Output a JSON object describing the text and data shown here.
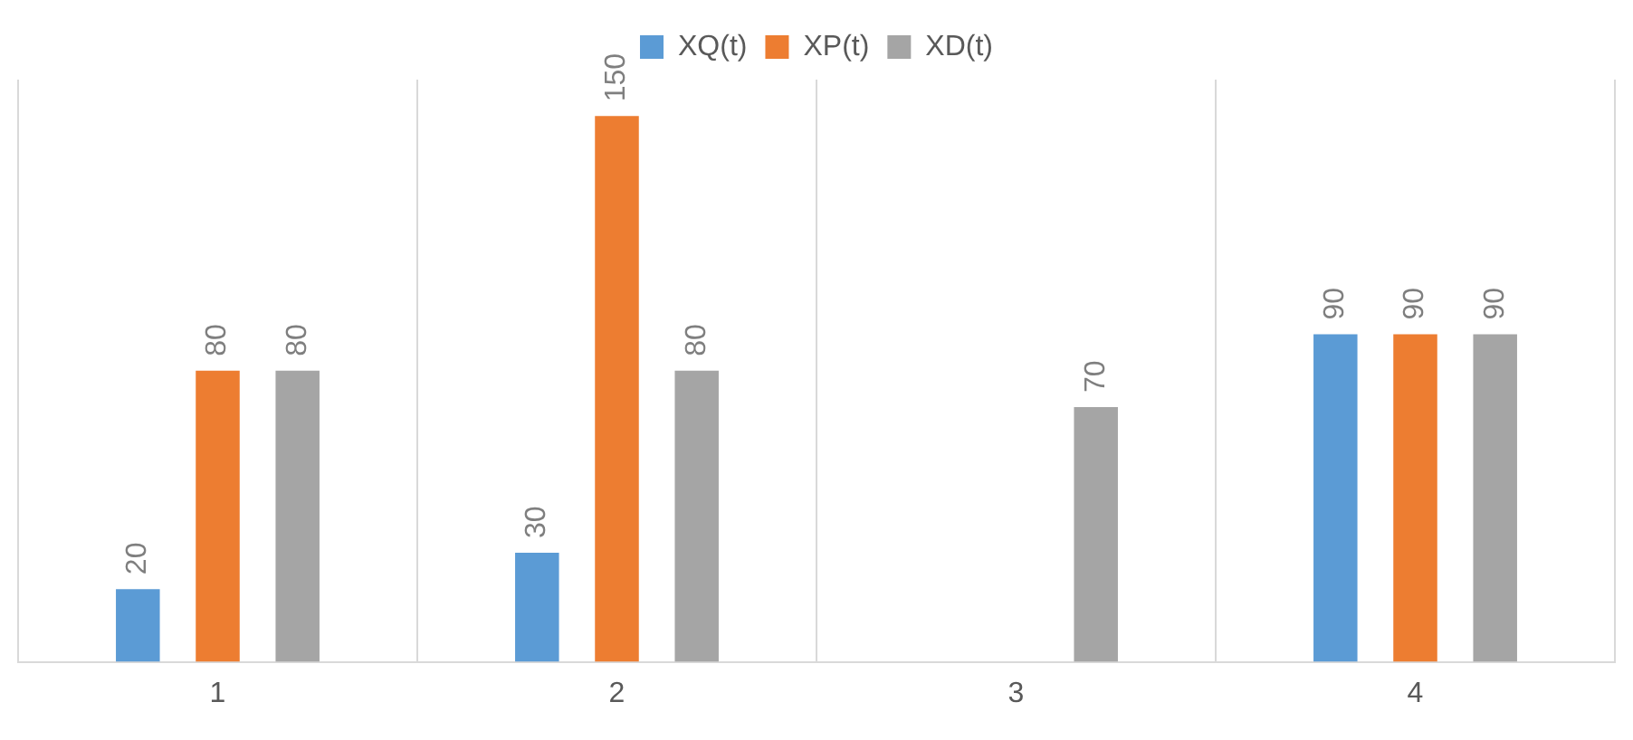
{
  "chart_data": {
    "type": "bar",
    "categories": [
      "1",
      "2",
      "3",
      "4"
    ],
    "series": [
      {
        "name": "XQ(t)",
        "color": "#5b9bd5",
        "values": [
          20,
          30,
          null,
          90
        ]
      },
      {
        "name": "XP(t)",
        "color": "#ed7d31",
        "values": [
          80,
          150,
          null,
          90
        ]
      },
      {
        "name": "XD(t)",
        "color": "#a5a5a5",
        "values": [
          80,
          80,
          70,
          90
        ]
      }
    ],
    "data_labels": true,
    "grid": "x",
    "legend": "top"
  }
}
